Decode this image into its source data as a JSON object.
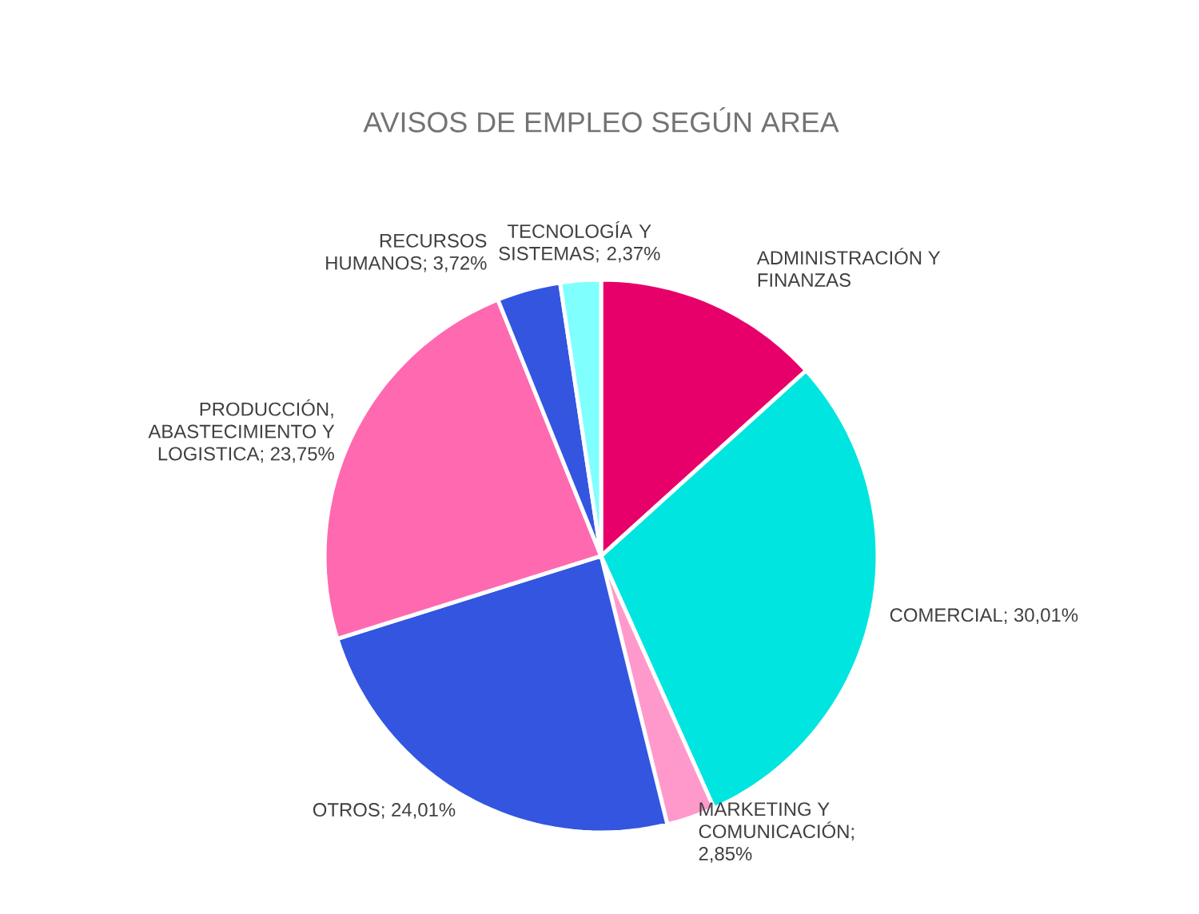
{
  "chart_data": {
    "type": "pie",
    "title": "AVISOS DE EMPLEO SEGÚN AREA",
    "categories": [
      "ADMINISTRACIÓN Y FINANZAS",
      "COMERCIAL; 30,01%",
      "MARKETING Y COMUNICACIÓN; 2,85%",
      "OTROS; 24,01%",
      "PRODUCCIÓN, ABASTECIMIENTO Y LOGISTICA; 23,75%",
      "RECURSOS HUMANOS; 3,72%",
      "TECNOLOGÍA Y SISTEMAS; 2,37%"
    ],
    "values": [
      13.29,
      30.01,
      2.85,
      24.01,
      23.75,
      3.72,
      2.37
    ],
    "colors": [
      "#e8006a",
      "#00e5e0",
      "#ff99cc",
      "#3355e0",
      "#ff69b0",
      "#3355e0",
      "#80ffff"
    ]
  }
}
